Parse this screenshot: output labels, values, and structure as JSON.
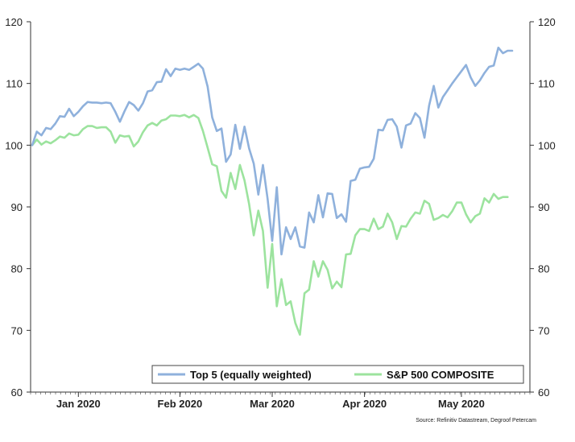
{
  "chart_data": {
    "type": "line",
    "title": "",
    "xlabel": "",
    "ylabel": "",
    "ylim": [
      60,
      120
    ],
    "y_ticks": [
      60,
      70,
      80,
      90,
      100,
      110,
      120
    ],
    "y_tick_labels": [
      "60",
      "70",
      "80",
      "90",
      "100",
      "110",
      "120"
    ],
    "x_tick_labels": [
      "Jan 2020",
      "Feb 2020",
      "Mar 2020",
      "Apr 2020",
      "May 2020"
    ],
    "x_tick_day_index": [
      10,
      32,
      52,
      72,
      93
    ],
    "x_minor_tick_count": 100,
    "grid": false,
    "legend_position": "bottom-right",
    "source": "Source: Refinitiv Datastream, Degroof Petercam",
    "series": [
      {
        "name": "Top 5 (equally weighted)",
        "color": "#8FB1DC",
        "values": [
          100,
          102.2,
          101.6,
          102.8,
          102.6,
          103.5,
          104.7,
          104.6,
          105.9,
          104.7,
          105.4,
          106.3,
          107,
          106.9,
          106.9,
          106.8,
          106.9,
          106.8,
          105.4,
          103.8,
          105.5,
          107,
          106.5,
          105.6,
          106.8,
          108.7,
          108.9,
          110.2,
          110.3,
          112.3,
          111.2,
          112.4,
          112.2,
          112.4,
          112.2,
          112.7,
          113.2,
          112.4,
          109.5,
          104.5,
          102.3,
          102.7,
          97.3,
          98.5,
          103.3,
          99.4,
          103,
          99.5,
          97,
          92,
          96.8,
          91.3,
          84.5,
          93.2,
          82.3,
          86.7,
          84.8,
          86.7,
          83.6,
          83.4,
          89.1,
          87.5,
          91.9,
          88.3,
          92.2,
          92.1,
          88.2,
          88.8,
          87.6,
          94.2,
          94.4,
          96.2,
          96.4,
          96.5,
          97.8,
          102.5,
          102.4,
          104.1,
          104.2,
          103,
          99.6,
          103.2,
          103.5,
          105.2,
          104.4,
          101.2,
          106.4,
          109.6,
          106.1,
          107.8,
          108.9,
          110,
          111,
          112,
          113,
          111,
          109.6,
          110.5,
          111.7,
          112.7,
          112.9,
          115.8,
          114.9,
          115.3,
          115.3
        ]
      },
      {
        "name": "S&P 500 COMPOSITE",
        "color": "#9CE39E",
        "values": [
          100,
          100.9,
          100.1,
          100.6,
          100.3,
          100.8,
          101.4,
          101.2,
          101.9,
          101.6,
          101.7,
          102.6,
          103.1,
          103.1,
          102.8,
          102.9,
          102.9,
          102.2,
          100.4,
          101.6,
          101.4,
          101.5,
          99.8,
          100.6,
          102.1,
          103.2,
          103.6,
          103.2,
          104.0,
          104.2,
          104.8,
          104.8,
          104.7,
          104.9,
          104.5,
          104.9,
          104.4,
          102.3,
          99.6,
          96.9,
          96.6,
          92.6,
          91.5,
          95.5,
          92.9,
          96.8,
          94.3,
          90.5,
          85.4,
          89.4,
          86.1,
          76.9,
          84,
          73.9,
          78.3,
          74.1,
          74.7,
          71.2,
          69.3,
          76,
          76.6,
          81.2,
          78.7,
          81.2,
          79.8,
          76.8,
          77.9,
          77,
          82.3,
          82.4,
          85.4,
          86.4,
          86.4,
          86.1,
          88.1,
          86.4,
          86.8,
          88.9,
          87.5,
          84.8,
          86.9,
          86.8,
          88.1,
          89.1,
          88.9,
          91,
          90.5,
          87.9,
          88.2,
          88.7,
          88.3,
          89.3,
          90.7,
          90.7,
          88.8,
          87.5,
          88.5,
          88.9,
          91.4,
          90.7,
          92.1,
          91.3,
          91.6,
          91.6
        ]
      }
    ]
  }
}
